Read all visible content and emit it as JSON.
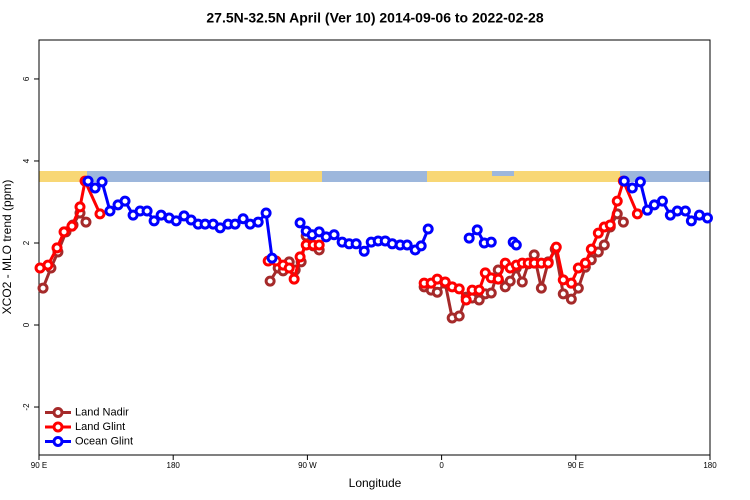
{
  "chart_data": {
    "type": "line",
    "title": "27.5N-32.5N April (Ver 10)   2014-09-06 to 2022-02-28",
    "xlabel": "Longitude",
    "ylabel": "XCO2 - MLO trend (ppm)",
    "xlim": [
      90,
      540
    ],
    "ylim": [
      -3.17,
      6.95
    ],
    "xticks": [
      {
        "value": 90,
        "label": "90 E"
      },
      180,
      {
        "value": 270,
        "label": "90 W"
      },
      {
        "value": 360,
        "label": "0"
      },
      {
        "value": 450,
        "label": "90 E"
      },
      {
        "value": 540,
        "label": "180"
      }
    ],
    "yticks": [
      -2,
      0,
      2,
      4,
      6
    ],
    "legend": "bottomleft",
    "series": [
      {
        "name": "Land Nadir",
        "color": "#a52a2a",
        "x": [
          92.7,
          98,
          102.7,
          108.1,
          112.8,
          117.5,
          121.5,
          null,
          245,
          250.4,
          253.7,
          257.8,
          261.8,
          265.8,
          269.2,
          273.9,
          277.9,
          null,
          348.3,
          353,
          357.1,
          362.4,
          367.1,
          371.8,
          376.5,
          380.5,
          385.2,
          389.3,
          393.3,
          398,
          402.7,
          406,
          410.1,
          414.1,
          418.1,
          422.1,
          426.9,
          431.5,
          436.2,
          441.6,
          447,
          451.7,
          456.4,
          460.4,
          465.1,
          469.1,
          473.1,
          477.8,
          481.9
        ],
        "values": [
          0.9,
          1.39,
          1.78,
          2.27,
          2.44,
          2.73,
          2.51,
          null,
          1.07,
          1.39,
          1.32,
          1.54,
          1.34,
          1.54,
          2.17,
          1.93,
          1.83,
          null,
          0.93,
          0.85,
          0.8,
          1.02,
          0.17,
          0.22,
          0.68,
          0.66,
          0.61,
          0.76,
          0.78,
          1.34,
          0.93,
          1.07,
          1.39,
          1.05,
          1.49,
          1.71,
          0.9,
          1.54,
          1.85,
          0.76,
          0.63,
          0.9,
          1.41,
          1.59,
          1.78,
          1.95,
          2.39,
          2.71,
          2.51
        ]
      },
      {
        "name": "Land Glint",
        "color": "#ff0000",
        "x": [
          90.7,
          96,
          102.1,
          106.8,
          112.1,
          117.5,
          120.9,
          130.9,
          null,
          243.7,
          249,
          253.7,
          257.8,
          261.1,
          265.1,
          269.2,
          273.9,
          277.9,
          null,
          348.3,
          353,
          357.1,
          362.4,
          367.1,
          371.8,
          376.5,
          380.5,
          385.2,
          389.3,
          393.3,
          398,
          402.7,
          406,
          410.1,
          414.1,
          418.1,
          422.1,
          426.9,
          431.5,
          436.9,
          441.6,
          447,
          451.7,
          456.4,
          460.4,
          465.1,
          469.1,
          473.1,
          477.8,
          481.9,
          491.3
        ],
        "values": [
          1.39,
          1.46,
          1.88,
          2.27,
          2.41,
          2.88,
          3.51,
          2.71,
          null,
          1.56,
          1.56,
          1.46,
          1.39,
          1.12,
          1.66,
          1.95,
          1.95,
          1.95,
          null,
          1.02,
          1.02,
          1.12,
          1.05,
          0.93,
          0.88,
          0.61,
          0.85,
          0.85,
          1.27,
          1.15,
          1.12,
          1.51,
          1.39,
          1.46,
          1.51,
          1.51,
          1.51,
          1.51,
          1.51,
          1.9,
          1.1,
          1.02,
          1.39,
          1.51,
          1.85,
          2.24,
          2.39,
          2.44,
          3.02,
          3.51,
          2.71
        ]
      },
      {
        "name": "Ocean Glint",
        "color": "#0000ff",
        "x": [
          122.9,
          127.6,
          132.3,
          137.6,
          143,
          147.7,
          153.1,
          157.8,
          162.5,
          167.2,
          171.9,
          177.3,
          182,
          187.3,
          192,
          196.7,
          201.4,
          206.8,
          211.5,
          216.8,
          221.5,
          226.9,
          231.6,
          237,
          242.3,
          246.3,
          null,
          265.1,
          269.2,
          273.2,
          277.9,
          282.6,
          287.9,
          293.3,
          298,
          302.7,
          308.1,
          312.8,
          317.5,
          322.2,
          326.9,
          332.2,
          336.9,
          342.3,
          346.3,
          351,
          null,
          378.5,
          383.9,
          388.6,
          393.3,
          null,
          408,
          410.1,
          null,
          482.5,
          487.9,
          493.3,
          498,
          502.7,
          508.1,
          513.4,
          518.1,
          523.5,
          527.5,
          532.9,
          538.3
        ],
        "values": [
          3.51,
          3.34,
          3.49,
          2.78,
          2.93,
          3.02,
          2.68,
          2.78,
          2.78,
          2.54,
          2.68,
          2.61,
          2.54,
          2.66,
          2.56,
          2.46,
          2.46,
          2.46,
          2.37,
          2.46,
          2.46,
          2.59,
          2.46,
          2.51,
          2.73,
          1.63,
          null,
          2.49,
          2.29,
          2.2,
          2.27,
          2.15,
          2.2,
          2.02,
          1.98,
          1.98,
          1.8,
          2.02,
          2.05,
          2.05,
          1.98,
          1.95,
          1.95,
          1.83,
          1.93,
          2.34,
          null,
          2.12,
          2.32,
          2.0,
          2.02,
          null,
          2.02,
          1.95,
          null,
          3.51,
          3.34,
          3.49,
          2.8,
          2.93,
          3.02,
          2.68,
          2.78,
          2.78,
          2.54,
          2.68,
          2.61
        ]
      }
    ]
  }
}
